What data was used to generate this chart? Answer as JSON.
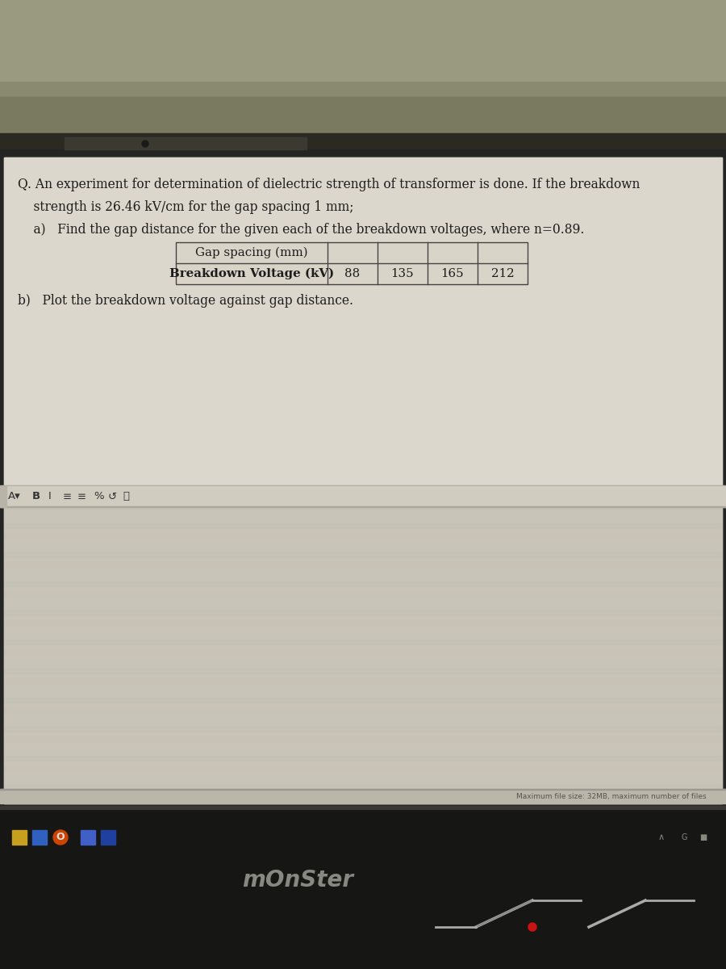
{
  "line1": "Q. An experiment for determination of dielectric strength of transformer is done. If the breakdown",
  "line2": "    strength is 26.46 kV/cm for the gap spacing 1 mm;",
  "line3": "    a)   Find the gap distance for the given each of the breakdown voltages, where n=0.89.",
  "table_row1": "Gap spacing (mm)",
  "table_row2": "Breakdown Voltage (kV)",
  "voltages": [
    88,
    135,
    165,
    212
  ],
  "line_b": "b)   Plot the breakdown voltage against gap distance.",
  "bottom_bar_text": "Maximum file size: 32MB, maximum number of files",
  "monster_text": "mOnSter",
  "olive_top_color": "#8a8a72",
  "screen_bg_color": "#c9c5b8",
  "content_bg_color": "#d2cec2",
  "white_content_bg": "#e8e6e0",
  "toolbar_bg": "#d5d1c5",
  "dark_bar_color": "#2a2828",
  "taskbar_color": "#181818",
  "text_dark": "#1c1c1c",
  "table_line_color": "#444444",
  "status_bar_color": "#b8b4a8",
  "bottom_gray": "#3a3838"
}
